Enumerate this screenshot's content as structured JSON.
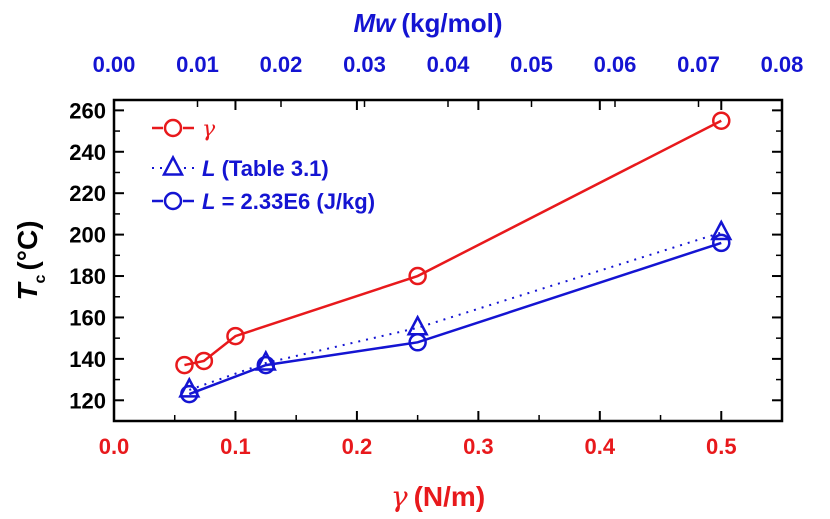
{
  "chart_data": {
    "type": "line",
    "title": "",
    "xlabel": {
      "symbol": "γ",
      "unit": "(N/m)"
    },
    "ylabel": {
      "symbol": "T",
      "subscript": "c",
      "unit": "(°C)"
    },
    "x2label": {
      "symbol": "Mw",
      "unit": "(kg/mol)"
    },
    "xlim": [
      0,
      0.55
    ],
    "ylim": [
      110,
      265
    ],
    "x2lim": [
      0,
      0.08
    ],
    "x_ticks": [
      "0.0",
      "0.1",
      "0.2",
      "0.3",
      "0.4",
      "0.5"
    ],
    "x_tick_values": [
      0,
      0.1,
      0.2,
      0.3,
      0.4,
      0.5
    ],
    "y_ticks": [
      "120",
      "140",
      "160",
      "180",
      "200",
      "220",
      "240",
      "260"
    ],
    "y_tick_values": [
      120,
      140,
      160,
      180,
      200,
      220,
      240,
      260
    ],
    "x2_ticks": [
      "0.00",
      "0.01",
      "0.02",
      "0.03",
      "0.04",
      "0.05",
      "0.06",
      "0.07",
      "0.08"
    ],
    "x2_tick_values": [
      0,
      0.01,
      0.02,
      0.03,
      0.04,
      0.05,
      0.06,
      0.07,
      0.08
    ],
    "grid": false,
    "legend_position": "top-left",
    "series": [
      {
        "name": "γ",
        "legend_prefix": "",
        "legend_italic": "γ",
        "legend_suffix": "",
        "color": "#e8191c",
        "marker": "circle",
        "line": "solid",
        "x": [
          0.058,
          0.074,
          0.1,
          0.25,
          0.5
        ],
        "y": [
          137,
          139,
          151,
          180,
          255
        ]
      },
      {
        "name": "L (Table 3.1)",
        "legend_prefix": "",
        "legend_italic": "L",
        "legend_suffix": " (Table 3.1)",
        "color": "#1414d2",
        "marker": "triangle",
        "line": "dotted",
        "x": [
          0.062,
          0.125,
          0.25,
          0.5
        ],
        "y": [
          125,
          138,
          155,
          201
        ]
      },
      {
        "name": "L = 2.33E6 (J/kg)",
        "legend_prefix": "",
        "legend_italic": "L",
        "legend_suffix": " = 2.33E6 (J/kg)",
        "color": "#1414d2",
        "marker": "circle",
        "line": "solid",
        "x": [
          0.062,
          0.125,
          0.25,
          0.5
        ],
        "y": [
          123,
          137,
          148,
          196
        ]
      }
    ]
  }
}
